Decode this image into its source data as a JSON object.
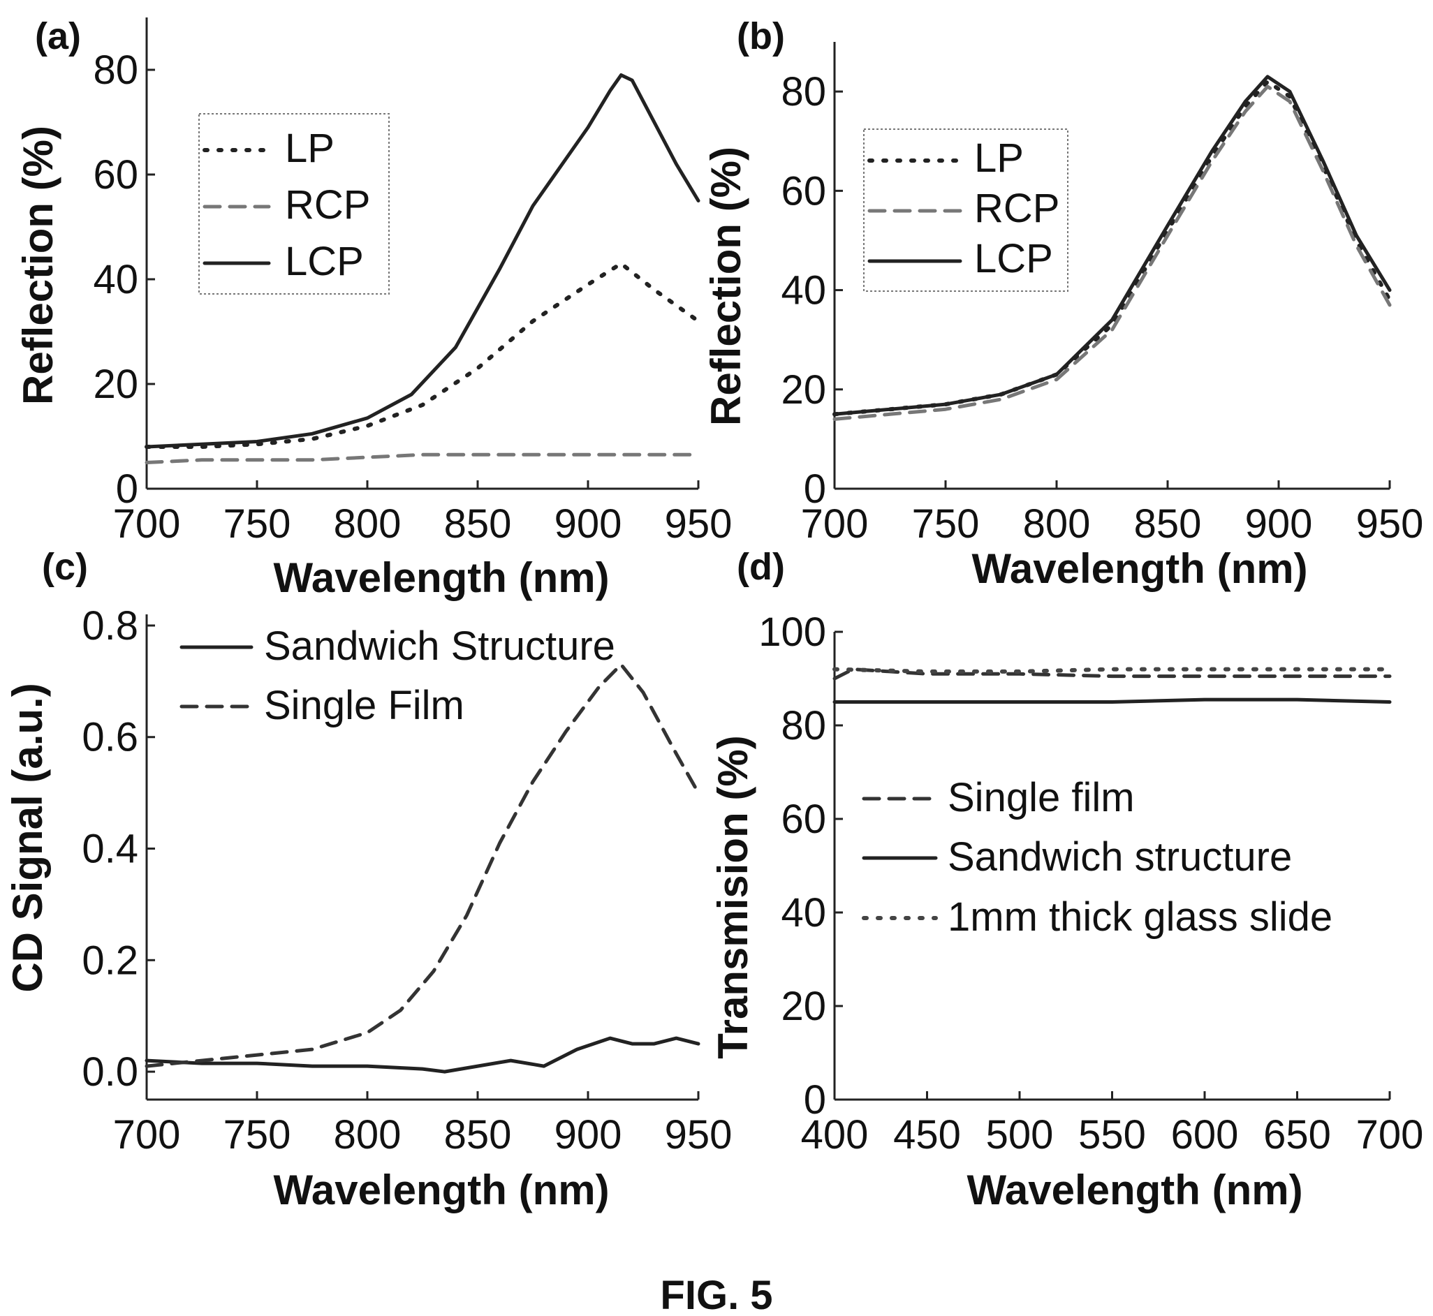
{
  "figure_caption": "FIG. 5",
  "chart_data": [
    {
      "panel_label": "(a)",
      "type": "line",
      "xlabel": "Wavelength (nm)",
      "ylabel": "Reflection (%)",
      "xlim": [
        700,
        950
      ],
      "ylim": [
        0,
        90
      ],
      "xticks": [
        700,
        750,
        800,
        850,
        900,
        950
      ],
      "yticks": [
        0,
        20,
        40,
        60,
        80
      ],
      "legend_position": "upper-left",
      "legend_box": true,
      "series": [
        {
          "name": "LP",
          "style": "dotted",
          "color": "#222222",
          "x": [
            700,
            725,
            750,
            775,
            800,
            825,
            850,
            875,
            900,
            915,
            930,
            950
          ],
          "y": [
            8,
            8,
            8.5,
            9.5,
            12,
            16,
            23,
            32,
            39,
            43,
            38,
            32
          ]
        },
        {
          "name": "RCP",
          "style": "dashed",
          "color": "#777777",
          "x": [
            700,
            725,
            750,
            775,
            800,
            825,
            850,
            875,
            900,
            925,
            950
          ],
          "y": [
            5,
            5.5,
            5.5,
            5.5,
            6,
            6.5,
            6.5,
            6.5,
            6.5,
            6.5,
            6.5
          ]
        },
        {
          "name": "LCP",
          "style": "solid",
          "color": "#222222",
          "x": [
            700,
            725,
            750,
            775,
            800,
            820,
            840,
            860,
            875,
            890,
            900,
            910,
            915,
            920,
            930,
            940,
            950
          ],
          "y": [
            8,
            8.5,
            9,
            10.5,
            13.5,
            18,
            27,
            42,
            54,
            63,
            69,
            76,
            79,
            78,
            70,
            62,
            55
          ]
        }
      ]
    },
    {
      "panel_label": "(b)",
      "type": "line",
      "xlabel": "Wavelength (nm)",
      "ylabel": "Reflection (%)",
      "xlim": [
        700,
        950
      ],
      "ylim": [
        0,
        90
      ],
      "xticks": [
        700,
        750,
        800,
        850,
        900,
        950
      ],
      "yticks": [
        0,
        20,
        40,
        60,
        80
      ],
      "legend_position": "upper-left",
      "legend_box": true,
      "series": [
        {
          "name": "LP",
          "style": "dotted",
          "color": "#222222",
          "x": [
            700,
            725,
            750,
            775,
            800,
            825,
            850,
            870,
            885,
            895,
            905,
            920,
            935,
            950
          ],
          "y": [
            15,
            16,
            17,
            19,
            23,
            33,
            52,
            67,
            77,
            82,
            79,
            65,
            50,
            38
          ]
        },
        {
          "name": "RCP",
          "style": "dashed",
          "color": "#777777",
          "x": [
            700,
            725,
            750,
            775,
            800,
            825,
            850,
            870,
            885,
            895,
            905,
            920,
            935,
            950
          ],
          "y": [
            14,
            15,
            16,
            18,
            22,
            32,
            51,
            66,
            76,
            81,
            78,
            64,
            49,
            37
          ]
        },
        {
          "name": "LCP",
          "style": "solid",
          "color": "#222222",
          "x": [
            700,
            725,
            750,
            775,
            800,
            825,
            850,
            870,
            885,
            895,
            905,
            920,
            935,
            950
          ],
          "y": [
            15,
            16,
            17,
            19,
            23,
            34,
            53,
            68,
            78,
            83,
            80,
            66,
            51,
            40
          ]
        }
      ]
    },
    {
      "panel_label": "(c)",
      "type": "line",
      "xlabel": "Wavelength (nm)",
      "ylabel": "CD Signal (a.u.)",
      "xlim": [
        700,
        950
      ],
      "ylim": [
        -0.05,
        0.82
      ],
      "xticks": [
        700,
        750,
        800,
        850,
        900,
        950
      ],
      "yticks": [
        0.0,
        0.2,
        0.4,
        0.6,
        0.8
      ],
      "ytick_labels": [
        "0.0",
        "0.2",
        "0.4",
        "0.6",
        "0.8"
      ],
      "legend_position": "top",
      "legend_box": false,
      "series": [
        {
          "name": "Sandwich Structure",
          "style": "solid",
          "color": "#222222",
          "x": [
            700,
            725,
            750,
            775,
            800,
            825,
            835,
            850,
            865,
            880,
            895,
            910,
            920,
            930,
            940,
            950
          ],
          "y": [
            0.02,
            0.015,
            0.015,
            0.01,
            0.01,
            0.005,
            0.0,
            0.01,
            0.02,
            0.01,
            0.04,
            0.06,
            0.05,
            0.05,
            0.06,
            0.05
          ]
        },
        {
          "name": "Single Film",
          "style": "dashed",
          "color": "#333333",
          "x": [
            700,
            725,
            750,
            775,
            800,
            815,
            830,
            845,
            860,
            875,
            890,
            905,
            915,
            925,
            940,
            950
          ],
          "y": [
            0.01,
            0.02,
            0.03,
            0.04,
            0.07,
            0.11,
            0.18,
            0.28,
            0.41,
            0.52,
            0.61,
            0.69,
            0.73,
            0.68,
            0.57,
            0.5
          ]
        }
      ]
    },
    {
      "panel_label": "(d)",
      "type": "line",
      "xlabel": "Wavelength (nm)",
      "ylabel": "Transmision (%)",
      "xlim": [
        400,
        700
      ],
      "ylim": [
        0,
        100
      ],
      "xticks": [
        400,
        450,
        500,
        550,
        600,
        650,
        700
      ],
      "yticks": [
        0,
        20,
        40,
        60,
        80,
        100
      ],
      "legend_position": "center",
      "legend_box": false,
      "series": [
        {
          "name": "Single film",
          "style": "dashed",
          "color": "#333333",
          "x": [
            400,
            410,
            450,
            500,
            550,
            600,
            650,
            700
          ],
          "y": [
            90,
            92,
            91,
            91,
            90.5,
            90.5,
            90.5,
            90.5
          ]
        },
        {
          "name": "Sandwich structure",
          "style": "solid",
          "color": "#222222",
          "x": [
            400,
            450,
            500,
            550,
            600,
            650,
            700
          ],
          "y": [
            85,
            85,
            85,
            85,
            85.5,
            85.5,
            85
          ]
        },
        {
          "name": "1mm thick glass slide",
          "style": "dotted",
          "color": "#444444",
          "x": [
            400,
            450,
            500,
            550,
            600,
            650,
            700
          ],
          "y": [
            92,
            91.5,
            91.5,
            92,
            92,
            92,
            92
          ]
        }
      ]
    }
  ]
}
